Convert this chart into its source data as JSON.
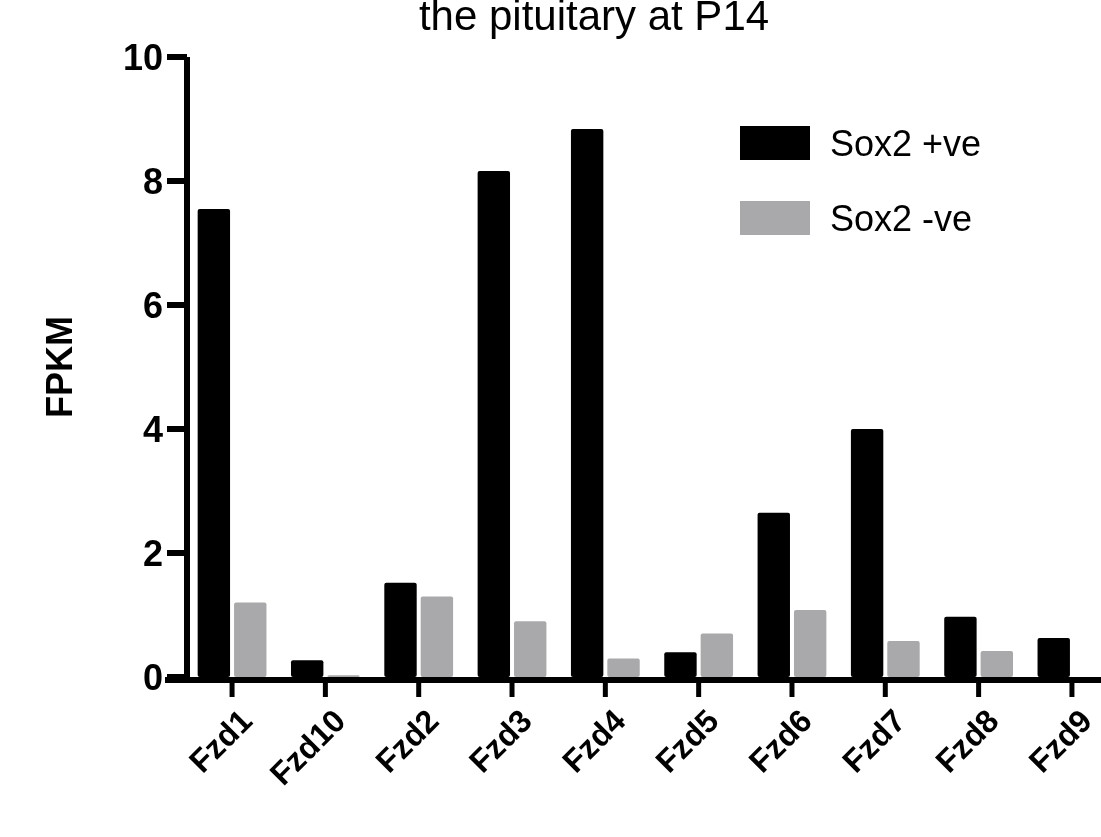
{
  "chart_data": {
    "type": "bar",
    "title": "the pituitary at P14",
    "ylabel": "FPKM",
    "categories": [
      "Fzd1",
      "Fzd10",
      "Fzd2",
      "Fzd3",
      "Fzd4",
      "Fzd5",
      "Fzd6",
      "Fzd7",
      "Fzd8",
      "Fzd9"
    ],
    "series": [
      {
        "name": "Sox2 +ve",
        "color": "#000000",
        "values": [
          7.55,
          0.27,
          1.52,
          8.16,
          8.84,
          0.4,
          2.65,
          4.0,
          0.97,
          0.63
        ]
      },
      {
        "name": "Sox2 -ve",
        "color": "#a9a9ab",
        "values": [
          1.2,
          0.03,
          1.3,
          0.9,
          0.3,
          0.7,
          1.08,
          0.58,
          0.42,
          0
        ]
      }
    ],
    "ylim": [
      0,
      10
    ],
    "yticks": [
      0,
      2,
      4,
      6,
      8,
      10
    ],
    "legend": "top right"
  }
}
